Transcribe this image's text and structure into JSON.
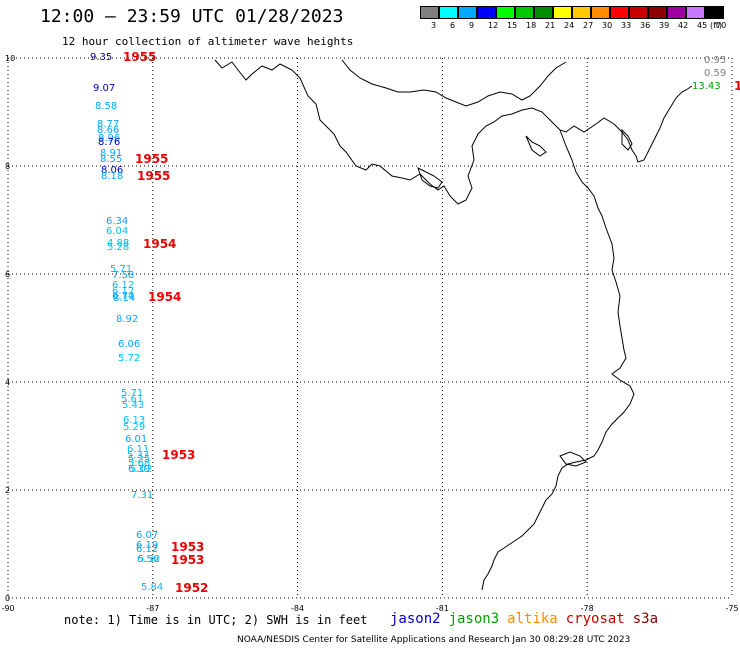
{
  "title": "12:00 – 23:59 UTC 01/28/2023",
  "subtitle": "12 hour collection of altimeter wave heights",
  "colorbar": {
    "unit": "(ft)",
    "entries": [
      {
        "label": "3",
        "color": "#7f7f7f"
      },
      {
        "label": "6",
        "color": "#00ffff"
      },
      {
        "label": "9",
        "color": "#00a8ff"
      },
      {
        "label": "12",
        "color": "#0000ff"
      },
      {
        "label": "15",
        "color": "#00ff00"
      },
      {
        "label": "18",
        "color": "#00c800"
      },
      {
        "label": "21",
        "color": "#008c00"
      },
      {
        "label": "24",
        "color": "#ffff00"
      },
      {
        "label": "27",
        "color": "#ffc800"
      },
      {
        "label": "30",
        "color": "#ff8c00"
      },
      {
        "label": "33",
        "color": "#ff0000"
      },
      {
        "label": "36",
        "color": "#c80000"
      },
      {
        "label": "39",
        "color": "#8c0000"
      },
      {
        "label": "42",
        "color": "#a000a0"
      },
      {
        "label": "45",
        "color": "#c878ff"
      },
      {
        "label": "70",
        "color": "#000000"
      }
    ]
  },
  "axes": {
    "x_ticks": [
      "-90",
      "-87",
      "-84",
      "-81",
      "-78",
      "-75"
    ],
    "y_ticks": [
      "0",
      "2",
      "4",
      "6",
      "8",
      "10"
    ],
    "x_range": [
      -90,
      -75
    ],
    "y_range": [
      0,
      10
    ]
  },
  "observations": [
    {
      "text": "9.35",
      "color": "#00008c"
    },
    {
      "text": "9.07",
      "color": "#0000c8"
    },
    {
      "text": "8.58",
      "color": "#00a8ff"
    },
    {
      "text": "8.77",
      "color": "#00a8ff"
    },
    {
      "text": "8.66",
      "color": "#00a8ff"
    },
    {
      "text": "8.96",
      "color": "#00a8ff"
    },
    {
      "text": "8.76",
      "color": "#0000c8"
    },
    {
      "text": "8.91",
      "color": "#00a8ff"
    },
    {
      "text": "8.55",
      "color": "#00a8ff"
    },
    {
      "text": "8.06",
      "color": "#0000c8"
    },
    {
      "text": "8.18",
      "color": "#00a8ff"
    },
    {
      "text": "6.34",
      "color": "#00a8ff"
    },
    {
      "text": "6.04",
      "color": "#00c0ff"
    },
    {
      "text": "4.88",
      "color": "#00c0ff"
    },
    {
      "text": "5.28",
      "color": "#00c0ff"
    },
    {
      "text": "5.71",
      "color": "#00c0ff"
    },
    {
      "text": "7.58",
      "color": "#00a8ff"
    },
    {
      "text": "6.12",
      "color": "#00c0ff"
    },
    {
      "text": "6.12",
      "color": "#00c0ff"
    },
    {
      "text": "6.74",
      "color": "#00a8ff"
    },
    {
      "text": "8.14",
      "color": "#00a8ff"
    },
    {
      "text": "8.92",
      "color": "#00a8ff"
    },
    {
      "text": "6.06",
      "color": "#00a8ff"
    },
    {
      "text": "5.72",
      "color": "#00c0ff"
    },
    {
      "text": "5.71",
      "color": "#00c0ff"
    },
    {
      "text": "5.61",
      "color": "#00c0ff"
    },
    {
      "text": "5.43",
      "color": "#00c0ff"
    },
    {
      "text": "6.13",
      "color": "#00c0ff"
    },
    {
      "text": "5.29",
      "color": "#00c0ff"
    },
    {
      "text": "6.01",
      "color": "#00a8ff"
    },
    {
      "text": "6.11",
      "color": "#00c0ff"
    },
    {
      "text": "5.33",
      "color": "#00c0ff"
    },
    {
      "text": "5.25",
      "color": "#00c0ff"
    },
    {
      "text": "5.68",
      "color": "#00c0ff"
    },
    {
      "text": "6.39",
      "color": "#00a8ff"
    },
    {
      "text": "5.02",
      "color": "#00c0ff"
    },
    {
      "text": "7.31",
      "color": "#00a8ff"
    },
    {
      "text": "6.07",
      "color": "#00a8ff"
    },
    {
      "text": "6.19",
      "color": "#00a8ff"
    },
    {
      "text": "6.12",
      "color": "#00a8ff"
    },
    {
      "text": "6.56",
      "color": "#00a8ff"
    },
    {
      "text": "5.32",
      "color": "#00c0ff"
    },
    {
      "text": "5.84",
      "color": "#00c0ff"
    },
    {
      "text": "0.95",
      "color": "#7f7f7f"
    },
    {
      "text": "0.59",
      "color": "#7f7f7f"
    },
    {
      "text": "13.43",
      "color": "#00a000"
    }
  ],
  "time_labels": [
    "1955",
    "1955",
    "1955",
    "1954",
    "1954",
    "1953",
    "1953",
    "1953",
    "1952",
    "1"
  ],
  "note": "note: 1) Time is in UTC; 2) SWH is in feet",
  "missions": [
    {
      "name": "jason2",
      "color": "#0000c8"
    },
    {
      "name": "jason3",
      "color": "#00a000"
    },
    {
      "name": "altika",
      "color": "#ff8c00"
    },
    {
      "name": "cryosat",
      "color": "#c80000"
    },
    {
      "name": "s3a",
      "color": "#8c0000"
    }
  ],
  "footer": "NOAA/NESDIS Center for Satellite Applications and Research   Jan 30 08:29:28 UTC 2023"
}
